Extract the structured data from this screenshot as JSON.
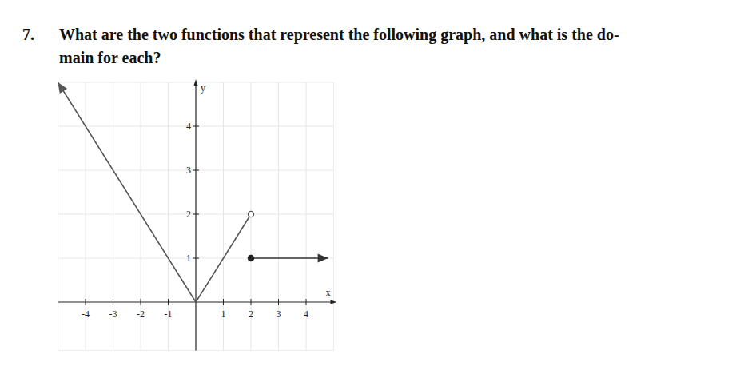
{
  "question": {
    "number": "7.",
    "lines": [
      "What are the two functions that represent the following graph, and what is the do-",
      "main for each?"
    ]
  },
  "chart_data": {
    "type": "line",
    "xlabel": "x",
    "ylabel": "y",
    "xlim": [
      -5,
      5
    ],
    "ylim": [
      -1.1,
      5
    ],
    "xticks": [
      -4,
      -3,
      -2,
      -1,
      1,
      2,
      3,
      4
    ],
    "yticks": [
      1,
      2,
      3,
      4
    ],
    "grid": true,
    "series": [
      {
        "x": [
          -5,
          0,
          2
        ],
        "values": [
          5,
          0,
          2
        ],
        "color": "#555555",
        "marker": "open-end"
      },
      {
        "x": [
          2,
          4.8
        ],
        "values": [
          1,
          1
        ],
        "color": "#333333",
        "marker": "closed-start"
      }
    ]
  }
}
